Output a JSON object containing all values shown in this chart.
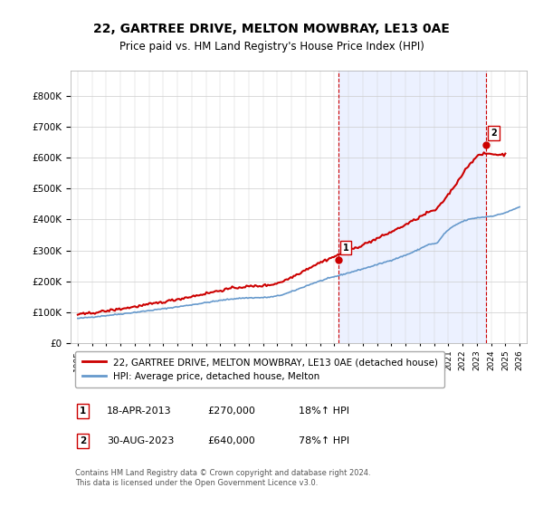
{
  "title": "22, GARTREE DRIVE, MELTON MOWBRAY, LE13 0AE",
  "subtitle": "Price paid vs. HM Land Registry's House Price Index (HPI)",
  "hpi_color": "#6699cc",
  "price_color": "#cc0000",
  "bg_color": "#f0f4ff",
  "annotation1": {
    "label": "1",
    "date_str": "18-APR-2013",
    "price": 270000,
    "hpi_pct": "18%↑ HPI",
    "x_year": 2013.29
  },
  "annotation2": {
    "label": "2",
    "date_str": "30-AUG-2023",
    "price": 640000,
    "hpi_pct": "78%↑ HPI",
    "x_year": 2023.66
  },
  "legend_line1": "22, GARTREE DRIVE, MELTON MOWBRAY, LE13 0AE (detached house)",
  "legend_line2": "HPI: Average price, detached house, Melton",
  "footer": "Contains HM Land Registry data © Crown copyright and database right 2024.\nThis data is licensed under the Open Government Licence v3.0.",
  "ylim": [
    0,
    880000
  ],
  "xlim_start": 1994.5,
  "xlim_end": 2026.5
}
